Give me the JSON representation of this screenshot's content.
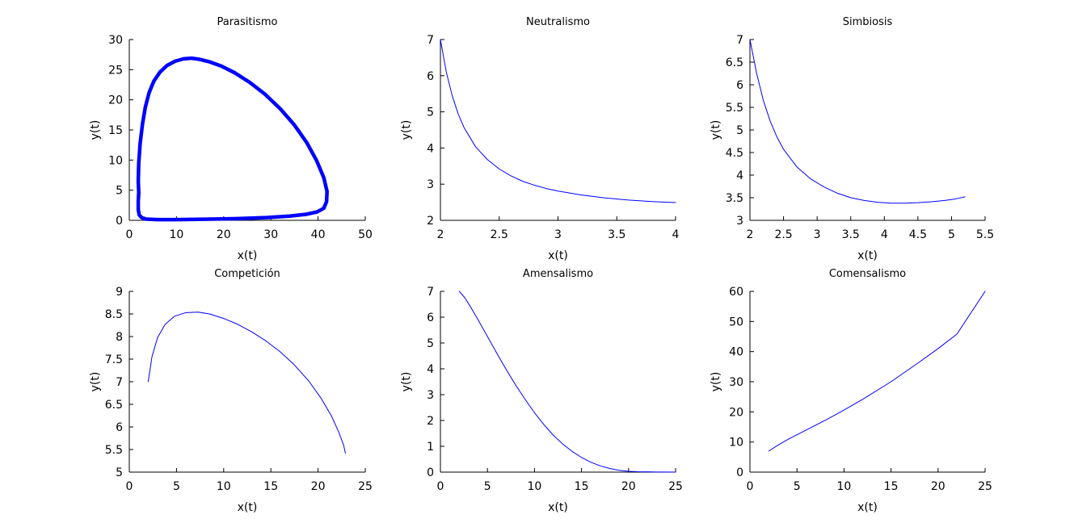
{
  "chart_data": [
    {
      "type": "line",
      "title": "Parasitismo",
      "xlabel": "x(t)",
      "ylabel": "y(t)",
      "xlim": [
        0,
        50
      ],
      "ylim": [
        0,
        30
      ],
      "xticks": [
        "0",
        "10",
        "20",
        "30",
        "40",
        "50"
      ],
      "yticks": [
        "0",
        "5",
        "10",
        "15",
        "20",
        "25",
        "30"
      ],
      "line_color": "#0000ff",
      "series": [
        {
          "x": [
            2.0,
            1.9,
            2.0,
            2.3,
            2.8,
            3.4,
            4.2,
            5.2,
            6.5,
            8.0,
            9.7,
            11.5,
            13.2,
            15.0,
            17.0,
            19.5,
            22.3,
            25.5,
            28.8,
            32.0,
            35.0,
            37.6,
            39.7,
            41.2,
            41.9,
            41.8,
            41.2,
            39.8,
            37.5,
            34.0,
            29.0,
            23.0,
            16.0,
            10.0,
            6.0,
            3.6,
            2.6,
            2.1,
            1.9,
            1.9,
            2.0
          ],
          "y": [
            4.6,
            6.5,
            9.5,
            12.8,
            16.0,
            18.8,
            21.2,
            23.1,
            24.6,
            25.7,
            26.4,
            26.8,
            26.9,
            26.7,
            26.3,
            25.6,
            24.5,
            22.9,
            20.9,
            18.5,
            15.8,
            12.9,
            9.9,
            7.1,
            4.8,
            3.1,
            2.0,
            1.4,
            1.0,
            0.7,
            0.45,
            0.28,
            0.18,
            0.12,
            0.12,
            0.2,
            0.45,
            0.9,
            1.8,
            3.2,
            4.6
          ]
        }
      ]
    },
    {
      "type": "line",
      "title": "Neutralismo",
      "xlabel": "x(t)",
      "ylabel": "y(t)",
      "xlim": [
        2,
        4
      ],
      "ylim": [
        2,
        7
      ],
      "xticks": [
        "2",
        "2.5",
        "3",
        "3.5",
        "4"
      ],
      "yticks": [
        "2",
        "3",
        "4",
        "5",
        "6",
        "7"
      ],
      "line_color": "#0000ff",
      "series": [
        {
          "x": [
            2.0,
            2.05,
            2.1,
            2.15,
            2.2,
            2.3,
            2.4,
            2.5,
            2.6,
            2.7,
            2.8,
            2.9,
            3.0,
            3.2,
            3.4,
            3.6,
            3.8,
            4.0
          ],
          "y": [
            7.0,
            6.1,
            5.45,
            4.95,
            4.57,
            4.03,
            3.68,
            3.42,
            3.23,
            3.08,
            2.97,
            2.88,
            2.81,
            2.7,
            2.62,
            2.56,
            2.52,
            2.49
          ]
        }
      ]
    },
    {
      "type": "line",
      "title": "Simbiosis",
      "xlabel": "x(t)",
      "ylabel": "y(t)",
      "xlim": [
        2,
        5.5
      ],
      "ylim": [
        3,
        7
      ],
      "xticks": [
        "2",
        "2.5",
        "3",
        "3.5",
        "4",
        "4.5",
        "5",
        "5.5"
      ],
      "yticks": [
        "3",
        "3.5",
        "4",
        "4.5",
        "5",
        "5.5",
        "6",
        "6.5",
        "7"
      ],
      "line_color": "#0000ff",
      "series": [
        {
          "x": [
            2.0,
            2.1,
            2.2,
            2.3,
            2.4,
            2.5,
            2.7,
            2.9,
            3.1,
            3.3,
            3.5,
            3.7,
            3.9,
            4.1,
            4.3,
            4.5,
            4.7,
            4.9,
            5.05,
            5.2
          ],
          "y": [
            7.0,
            6.25,
            5.65,
            5.2,
            4.85,
            4.57,
            4.18,
            3.92,
            3.74,
            3.6,
            3.5,
            3.44,
            3.4,
            3.38,
            3.38,
            3.39,
            3.41,
            3.44,
            3.47,
            3.52
          ]
        }
      ]
    },
    {
      "type": "line",
      "title": "Competición",
      "xlabel": "x(t)",
      "ylabel": "y(t)",
      "xlim": [
        0,
        25
      ],
      "ylim": [
        5,
        9
      ],
      "xticks": [
        "0",
        "5",
        "10",
        "15",
        "20",
        "25"
      ],
      "yticks": [
        "5",
        "5.5",
        "6",
        "6.5",
        "7",
        "7.5",
        "8",
        "8.5",
        "9"
      ],
      "line_color": "#0000ff",
      "series": [
        {
          "x": [
            2.0,
            2.4,
            3.0,
            3.8,
            4.8,
            6.0,
            7.3,
            8.5,
            10.0,
            11.5,
            13.0,
            14.5,
            16.0,
            17.5,
            19.0,
            20.3,
            21.4,
            22.2,
            22.7,
            22.9
          ],
          "y": [
            7.0,
            7.55,
            7.98,
            8.27,
            8.45,
            8.53,
            8.54,
            8.5,
            8.4,
            8.27,
            8.1,
            7.9,
            7.66,
            7.37,
            7.02,
            6.64,
            6.25,
            5.88,
            5.6,
            5.42
          ]
        }
      ]
    },
    {
      "type": "line",
      "title": "Amensalismo",
      "xlabel": "x(t)",
      "ylabel": "y(t)",
      "xlim": [
        0,
        25
      ],
      "ylim": [
        0,
        7
      ],
      "xticks": [
        "0",
        "5",
        "10",
        "15",
        "20",
        "25"
      ],
      "yticks": [
        "0",
        "1",
        "2",
        "3",
        "4",
        "5",
        "6",
        "7"
      ],
      "line_color": "#0000ff",
      "series": [
        {
          "x": [
            2.0,
            2.6,
            3.2,
            4.0,
            5.0,
            6.0,
            7.0,
            8.0,
            9.0,
            10.0,
            11.0,
            12.0,
            13.0,
            14.0,
            15.0,
            16.0,
            17.0,
            18.0,
            19.0,
            20.0,
            21.0,
            22.0,
            23.0,
            24.0,
            25.0
          ],
          "y": [
            7.0,
            6.75,
            6.4,
            5.9,
            5.25,
            4.6,
            3.97,
            3.37,
            2.82,
            2.3,
            1.84,
            1.43,
            1.09,
            0.8,
            0.57,
            0.38,
            0.24,
            0.14,
            0.07,
            0.03,
            0.015,
            0.01,
            0.005,
            0.003,
            0.002
          ]
        }
      ]
    },
    {
      "type": "line",
      "title": "Comensalismo",
      "xlabel": "x(t)",
      "ylabel": "y(t)",
      "xlim": [
        0,
        25
      ],
      "ylim": [
        0,
        60
      ],
      "xticks": [
        "0",
        "5",
        "10",
        "15",
        "20",
        "25"
      ],
      "yticks": [
        "0",
        "10",
        "20",
        "30",
        "40",
        "50",
        "60"
      ],
      "line_color": "#0000ff",
      "series": [
        {
          "x": [
            2.0,
            3.0,
            4.0,
            5.0,
            6.0,
            8.0,
            10.0,
            12.0,
            15.0,
            18.0,
            20.0,
            22.0,
            25.0
          ],
          "y": [
            7.0,
            9.0,
            10.8,
            12.4,
            14.0,
            17.2,
            20.6,
            24.2,
            30.0,
            36.5,
            41.0,
            45.8,
            60.0
          ]
        }
      ]
    }
  ]
}
